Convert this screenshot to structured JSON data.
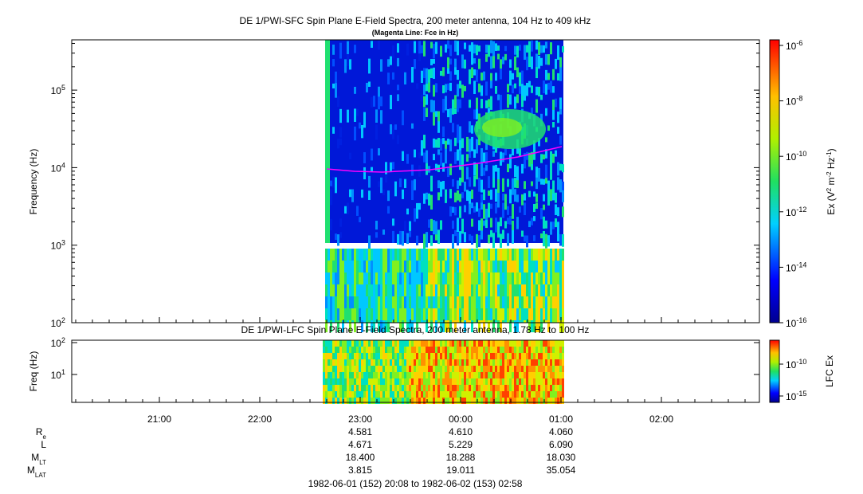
{
  "top_panel": {
    "title": "DE 1/PWI-SFC  Spin Plane E-Field Spectra, 200 meter antenna, 104 Hz to 409 kHz",
    "subtitle": "(Magenta Line: Fce in Hz)",
    "y_label": "Frequency (Hz)",
    "y_ticks": {
      "base": "10",
      "exponents": [
        2,
        3,
        4,
        5
      ]
    },
    "colorbar_label": [
      "Ex (V",
      "2",
      " m",
      "-2",
      " Hz",
      "-1",
      ")"
    ],
    "colorbar_ticks": {
      "base": "10",
      "exponents": [
        -6,
        -8,
        -10,
        -12,
        -14,
        -16
      ]
    }
  },
  "bottom_panel": {
    "title": "DE 1/PWI-LFC  Spin Plane E-Field Spectra, 200 meter antenna, 1.78 Hz to 100 Hz",
    "y_label": "Freq (Hz)",
    "y_ticks": {
      "base": "10",
      "exponents": [
        2,
        1
      ]
    },
    "colorbar_label": "LFC Ex",
    "colorbar_ticks": {
      "base": "10",
      "exponents": [
        -10,
        -15
      ]
    }
  },
  "time_ticks": [
    "21:00",
    "22:00",
    "23:00",
    "00:00",
    "01:00",
    "02:00"
  ],
  "ephemeris": {
    "rows": [
      {
        "label": {
          "main": "R",
          "sub": "e"
        },
        "values": [
          "4.581",
          "4.610",
          "4.060"
        ]
      },
      {
        "label": {
          "main": "L"
        },
        "values": [
          "4.671",
          "5.229",
          "6.090"
        ]
      },
      {
        "label": {
          "main": "M",
          "sub": "LT"
        },
        "values": [
          "18.400",
          "18.288",
          "18.030"
        ]
      },
      {
        "label": {
          "main": "M",
          "sub": "LAT"
        },
        "values": [
          "3.815",
          "19.011",
          "35.054"
        ]
      }
    ]
  },
  "time_range": "1982-06-01 (152) 20:08 to 1982-06-02 (153) 02:58"
}
